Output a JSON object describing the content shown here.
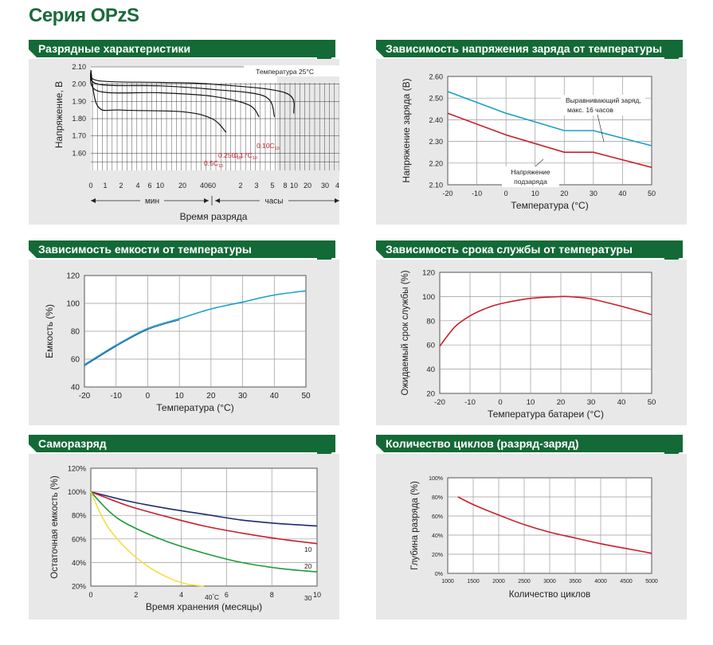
{
  "page_title": "Серия OPzS",
  "panels": {
    "discharge": "Разрядные характеристики",
    "charge_voltage": "Зависимость напряжения заряда от температуры",
    "capacity_temp": "Зависимость емкости от температуры",
    "life_temp": "Зависимость срока службы от температуры",
    "self_discharge": "Саморазряд",
    "cycles": "Количество циклов (разряд-заряд)"
  },
  "colors": {
    "header": "#136a36",
    "title": "#1a6a3a",
    "red": "#c8202e",
    "blue": "#1aa0c8",
    "navy": "#1e2a6e",
    "green": "#1e9a3a",
    "yellow": "#f2e040"
  },
  "chart_data": [
    {
      "id": "discharge",
      "type": "line",
      "title": "Разрядные характеристики",
      "xlabel": "Время разряда",
      "ylabel": "Напряжение, В",
      "annotation": "Температура 25°C",
      "unit_min": "мин",
      "unit_hours": "часы",
      "x_ticks_min": [
        "0",
        "1",
        "2",
        "4",
        "6",
        "10",
        "20",
        "40",
        "60"
      ],
      "x_ticks_hours": [
        "2",
        "3",
        "5",
        "8",
        "10",
        "20",
        "30",
        "40"
      ],
      "y_ticks": [
        "2.10",
        "2.00",
        "1.90",
        "1.80",
        "1.70",
        "1.60"
      ],
      "ylim": [
        1.5,
        2.1
      ],
      "series": [
        {
          "name": "0.5C10",
          "label_main": "0.5C",
          "label_sub": "10",
          "points": [
            [
              0,
              2.08
            ],
            [
              0.5,
              1.87
            ],
            [
              2,
              1.85
            ],
            [
              20,
              1.84
            ],
            [
              60,
              1.8
            ],
            [
              90,
              1.72
            ]
          ]
        },
        {
          "name": "0.25C10",
          "label_main": "0.25C",
          "label_sub": "10",
          "points": [
            [
              0,
              2.08
            ],
            [
              0.5,
              1.96
            ],
            [
              10,
              1.95
            ],
            [
              60,
              1.93
            ],
            [
              150,
              1.88
            ],
            [
              200,
              1.81
            ]
          ]
        },
        {
          "name": "0.17C10",
          "label_main": "0.17C",
          "label_sub": "10",
          "points": [
            [
              0,
              2.08
            ],
            [
              0.5,
              2.0
            ],
            [
              10,
              1.99
            ],
            [
              60,
              1.97
            ],
            [
              240,
              1.93
            ],
            [
              330,
              1.81
            ]
          ]
        },
        {
          "name": "0.10C10",
          "label_main": "0.10C",
          "label_sub": "10",
          "points": [
            [
              0,
              2.08
            ],
            [
              0.5,
              2.02
            ],
            [
              10,
              2.01
            ],
            [
              60,
              2.0
            ],
            [
              480,
              1.95
            ],
            [
              600,
              1.83
            ]
          ]
        }
      ]
    },
    {
      "id": "charge_voltage",
      "type": "line",
      "title": "Зависимость напряжения заряда от температуры",
      "xlabel": "Температура (°C)",
      "ylabel": "Напряжение заряда (B)",
      "x_ticks": [
        "-20",
        "-10",
        "0",
        "10",
        "20",
        "30",
        "40",
        "50"
      ],
      "y_ticks": [
        "2.60",
        "2.50",
        "2.40",
        "2.30",
        "2.20",
        "2.10"
      ],
      "xlim": [
        -20,
        50
      ],
      "ylim": [
        2.1,
        2.6
      ],
      "annotations": [
        "Выравнивающий заряд,",
        "макс. 16 часов",
        "Напряжение",
        "подзаряда"
      ],
      "series": [
        {
          "name": "Выравнивающий заряд",
          "points": [
            [
              -20,
              2.53
            ],
            [
              0,
              2.43
            ],
            [
              20,
              2.35
            ],
            [
              30,
              2.35
            ],
            [
              50,
              2.28
            ]
          ]
        },
        {
          "name": "Напряжение подзаряда",
          "points": [
            [
              -20,
              2.43
            ],
            [
              0,
              2.33
            ],
            [
              20,
              2.25
            ],
            [
              30,
              2.25
            ],
            [
              50,
              2.18
            ]
          ]
        }
      ]
    },
    {
      "id": "capacity_temp",
      "type": "line",
      "title": "Зависимость емкости от температуры",
      "xlabel": "Температура (°C)",
      "ylabel": "Емкость (%)",
      "x_ticks": [
        "-20",
        "-10",
        "0",
        "10",
        "20",
        "30",
        "40",
        "50"
      ],
      "y_ticks": [
        "120",
        "100",
        "80",
        "60",
        "40"
      ],
      "xlim": [
        -20,
        50
      ],
      "ylim": [
        40,
        120
      ],
      "series": [
        {
          "points": [
            [
              -20,
              56
            ],
            [
              -10,
              70
            ],
            [
              0,
              82
            ],
            [
              10,
              89
            ],
            [
              20,
              96
            ],
            [
              30,
              101
            ],
            [
              40,
              106
            ],
            [
              50,
              109
            ]
          ]
        }
      ]
    },
    {
      "id": "life_temp",
      "type": "line",
      "title": "Зависимость срока службы от температуры",
      "xlabel": "Температура батареи (°C)",
      "ylabel": "Ожидаемый срок службы (%)",
      "x_ticks": [
        "-20",
        "-10",
        "0",
        "10",
        "20",
        "30",
        "40",
        "50"
      ],
      "y_ticks": [
        "120",
        "100",
        "80",
        "60",
        "40",
        "20"
      ],
      "xlim": [
        -20,
        50
      ],
      "ylim": [
        20,
        120
      ],
      "series": [
        {
          "points": [
            [
              -20,
              59
            ],
            [
              -15,
              75
            ],
            [
              -10,
              84
            ],
            [
              -5,
              90
            ],
            [
              0,
              94
            ],
            [
              10,
              98.5
            ],
            [
              20,
              100
            ],
            [
              25,
              99.5
            ],
            [
              30,
              98
            ],
            [
              40,
              92
            ],
            [
              50,
              85
            ]
          ]
        }
      ]
    },
    {
      "id": "self_discharge",
      "type": "line",
      "title": "Саморазряд",
      "xlabel": "Время хранения (месяцы)",
      "ylabel": "Остаточная емкость (%)",
      "x_ticks": [
        "0",
        "2",
        "4",
        "6",
        "8",
        "10"
      ],
      "y_ticks": [
        "120%",
        "100%",
        "80%",
        "60%",
        "40%",
        "20%"
      ],
      "xlim": [
        0,
        12
      ],
      "ylim": [
        20,
        120
      ],
      "series": [
        {
          "name": "10",
          "points": [
            [
              0,
              100
            ],
            [
              2,
              92
            ],
            [
              4,
              86
            ],
            [
              6,
              81
            ],
            [
              8,
              76
            ],
            [
              10,
              73
            ],
            [
              12,
              71
            ]
          ]
        },
        {
          "name": "20",
          "points": [
            [
              0,
              100
            ],
            [
              2,
              88
            ],
            [
              4,
              79
            ],
            [
              6,
              71
            ],
            [
              8,
              65
            ],
            [
              10,
              60
            ],
            [
              12,
              56
            ]
          ]
        },
        {
          "name": "30",
          "points": [
            [
              0,
              100
            ],
            [
              1,
              83
            ],
            [
              2,
              72
            ],
            [
              4,
              58
            ],
            [
              6,
              48
            ],
            [
              8,
              40
            ],
            [
              10,
              35
            ],
            [
              12,
              32
            ]
          ]
        },
        {
          "name": "40°C",
          "label_main": "40",
          "label_suffix": "C",
          "points": [
            [
              0,
              100
            ],
            [
              0.5,
              82
            ],
            [
              1,
              68
            ],
            [
              2,
              50
            ],
            [
              3,
              37
            ],
            [
              4,
              28
            ],
            [
              5,
              22
            ],
            [
              6,
              20
            ]
          ]
        }
      ]
    },
    {
      "id": "cycles",
      "type": "line",
      "title": "Количество циклов (разряд-заряд)",
      "xlabel": "Количество циклов",
      "ylabel": "Глубина разряда (%)",
      "x_ticks": [
        "1000",
        "1500",
        "2000",
        "2500",
        "3000",
        "3500",
        "4000",
        "4500",
        "5000"
      ],
      "y_ticks": [
        "100%",
        "80%",
        "60%",
        "40%",
        "20%",
        "0%"
      ],
      "xlim": [
        1000,
        5000
      ],
      "ylim": [
        0,
        100
      ],
      "series": [
        {
          "points": [
            [
              1200,
              80
            ],
            [
              1500,
              72
            ],
            [
              2000,
              61
            ],
            [
              2500,
              51
            ],
            [
              3000,
              43
            ],
            [
              3500,
              37
            ],
            [
              4000,
              31
            ],
            [
              4500,
              26
            ],
            [
              5000,
              21
            ]
          ]
        }
      ]
    }
  ]
}
